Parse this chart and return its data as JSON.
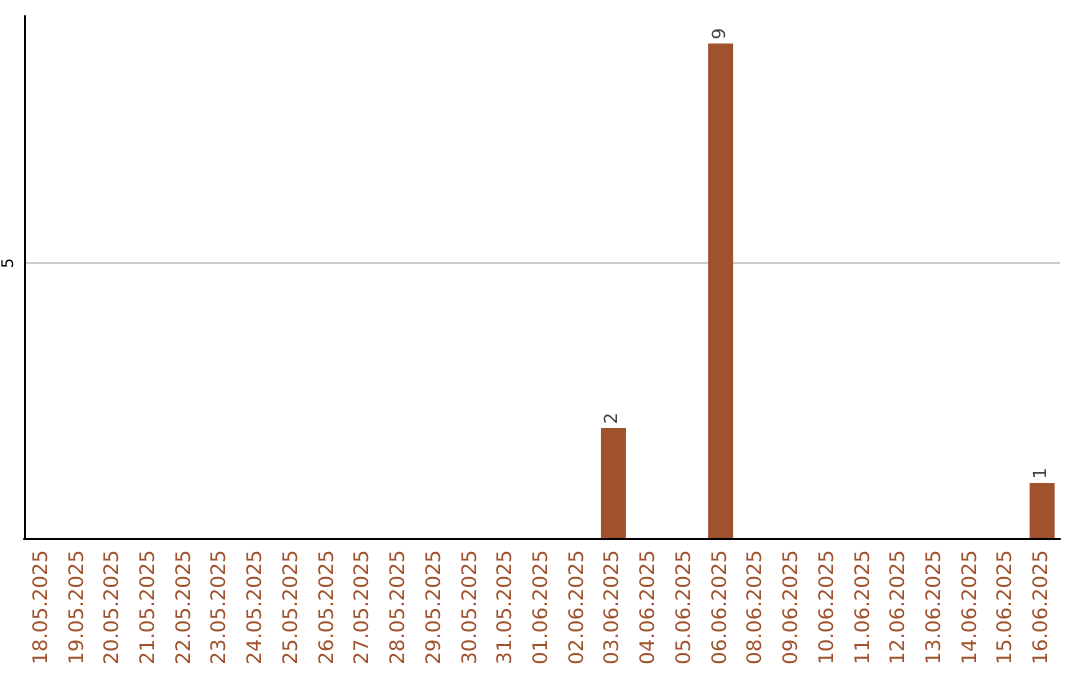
{
  "chart_data": {
    "type": "bar",
    "categories": [
      "18.05.2025",
      "19.05.2025",
      "20.05.2025",
      "21.05.2025",
      "22.05.2025",
      "23.05.2025",
      "24.05.2025",
      "25.05.2025",
      "26.05.2025",
      "27.05.2025",
      "28.05.2025",
      "29.05.2025",
      "30.05.2025",
      "31.05.2025",
      "01.06.2025",
      "02.06.2025",
      "03.06.2025",
      "04.06.2025",
      "05.06.2025",
      "06.06.2025",
      "08.06.2025",
      "09.06.2025",
      "10.06.2025",
      "11.06.2025",
      "12.06.2025",
      "13.06.2025",
      "14.06.2025",
      "15.06.2025",
      "16.06.2025"
    ],
    "values": [
      null,
      null,
      null,
      null,
      null,
      null,
      null,
      null,
      null,
      null,
      null,
      null,
      null,
      null,
      null,
      null,
      2,
      null,
      null,
      9,
      null,
      null,
      null,
      null,
      null,
      null,
      null,
      null,
      1
    ],
    "data_labels": true,
    "ylim": [
      0,
      9.5
    ],
    "yticks": [
      {
        "value": 0,
        "label": null
      },
      5
    ],
    "grid": "y",
    "color": "#a0522d"
  }
}
